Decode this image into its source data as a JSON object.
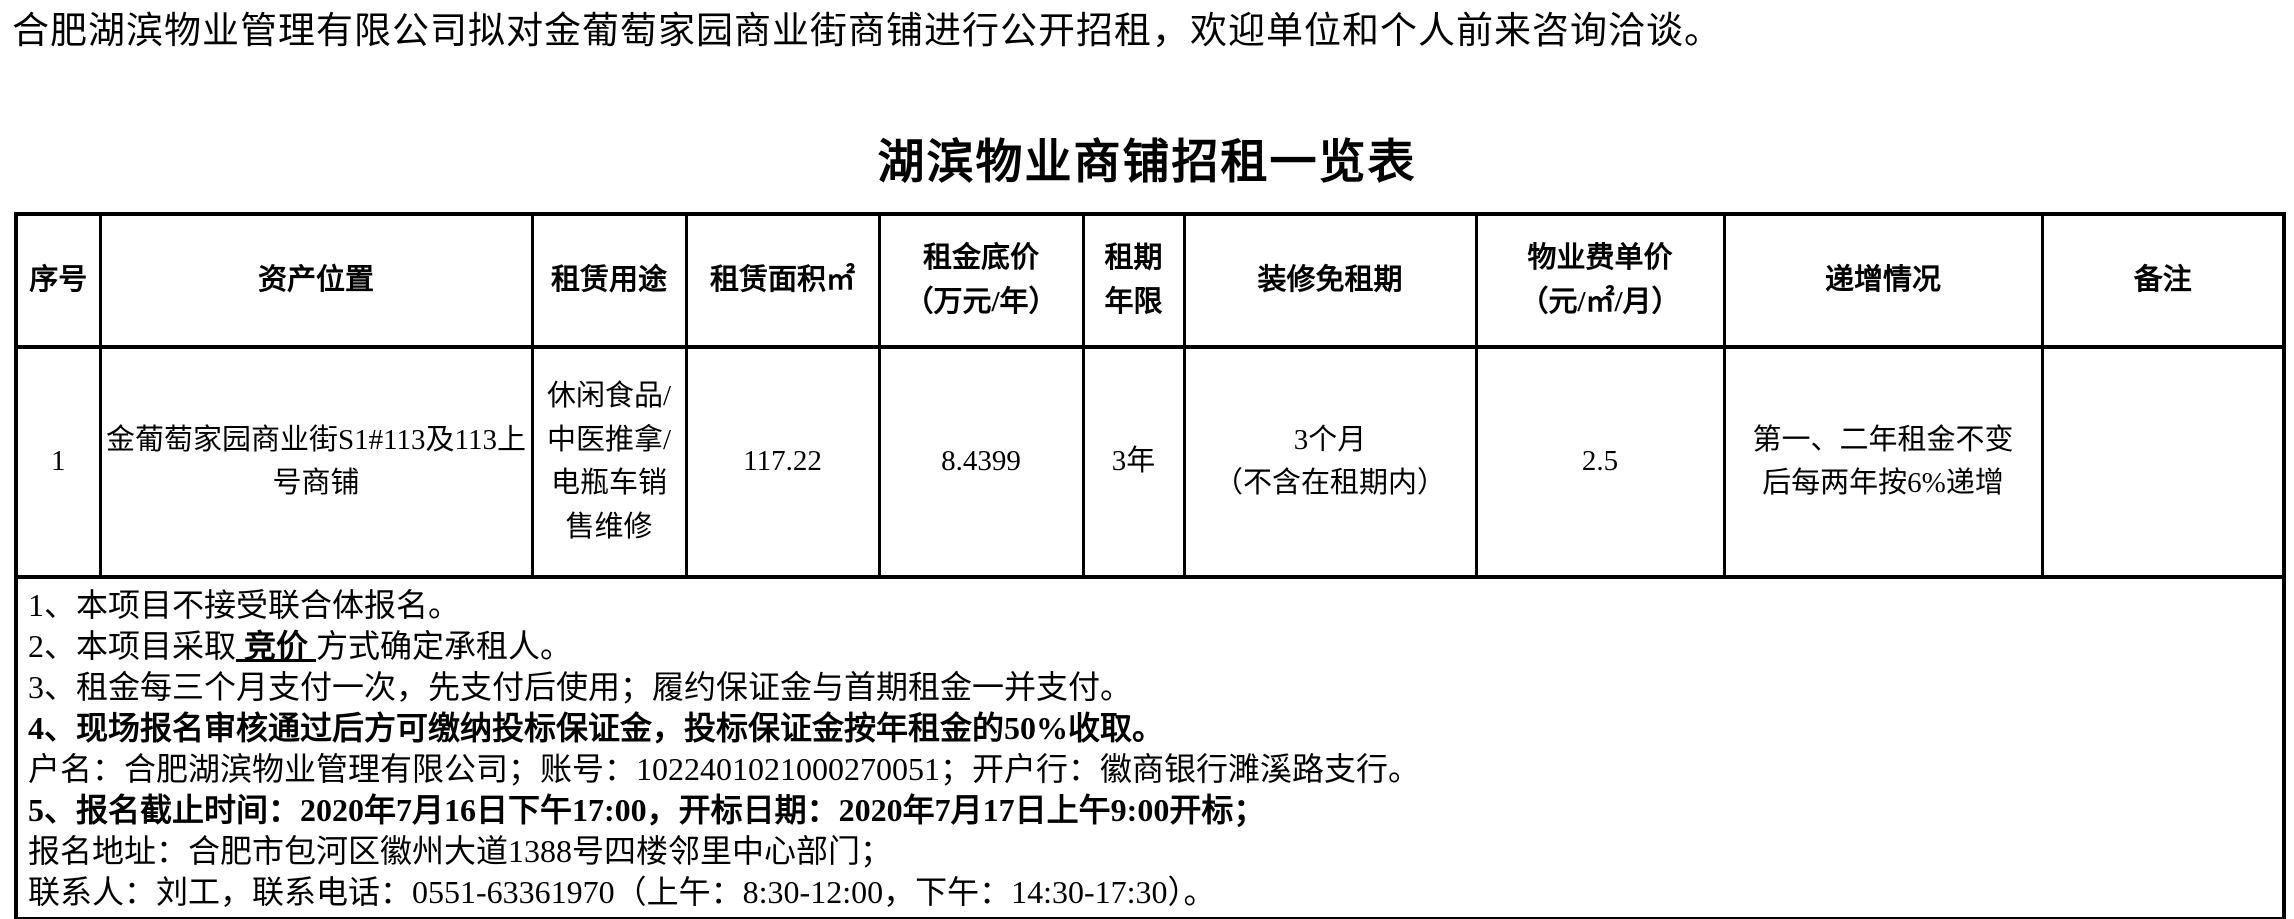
{
  "intro": "合肥湖滨物业管理有限公司拟对金葡萄家园商业街商铺进行公开招租，欢迎单位和个人前来咨询洽谈。",
  "title": "湖滨物业商铺招租一览表",
  "table": {
    "columns": [
      "序号",
      "资产位置",
      "租赁用途",
      "租赁面积㎡",
      "租金底价\n（万元/年）",
      "租期\n年限",
      "装修免租期",
      "物业费单价\n（元/㎡/月）",
      "递增情况",
      "备注"
    ],
    "row": {
      "seq": "1",
      "location": "金葡萄家园商业街S1#113及113上号商铺",
      "usage": "休闲食品/中医推拿/电瓶车销售维修",
      "area": "117.22",
      "base_rent": "8.4399",
      "term": "3年",
      "rent_free": "3个月\n（不含在租期内）",
      "property_fee": "2.5",
      "escalation": "第一、二年租金不变\n后每两年按6%递增",
      "remark": ""
    }
  },
  "notes": {
    "lines": [
      [
        {
          "t": "1、本项目不接受联合体报名。"
        }
      ],
      [
        {
          "t": "2、本项目采取"
        },
        {
          "t": " 竞价 ",
          "b": true,
          "u": true
        },
        {
          "t": "方式确定承租人。"
        }
      ],
      [
        {
          "t": "3、租金每三个月支付一次，先支付后使用；履约保证金与首期租金一并支付。"
        }
      ],
      [
        {
          "t": "4、现场报名审核通过后方可缴纳投标保证金，投标保证金按年租金的50%收取。",
          "b": true
        }
      ],
      [
        {
          "t": "户名：合肥湖滨物业管理有限公司；账号：1022401021000270051；开户行：徽商银行濉溪路支行。"
        }
      ],
      [
        {
          "t": "5、报名截止时间：2020年7月16日下午17:00，开标日期：2020年7月17日上午9:00开标；",
          "b": true
        }
      ],
      [
        {
          "t": "报名地址：合肥市包河区徽州大道1388号四楼邻里中心部门；"
        }
      ],
      [
        {
          "t": "联系人：刘工，联系电话：0551-63361970（上午：8:30-12:00，下午：14:30-17:30）。"
        }
      ]
    ]
  }
}
